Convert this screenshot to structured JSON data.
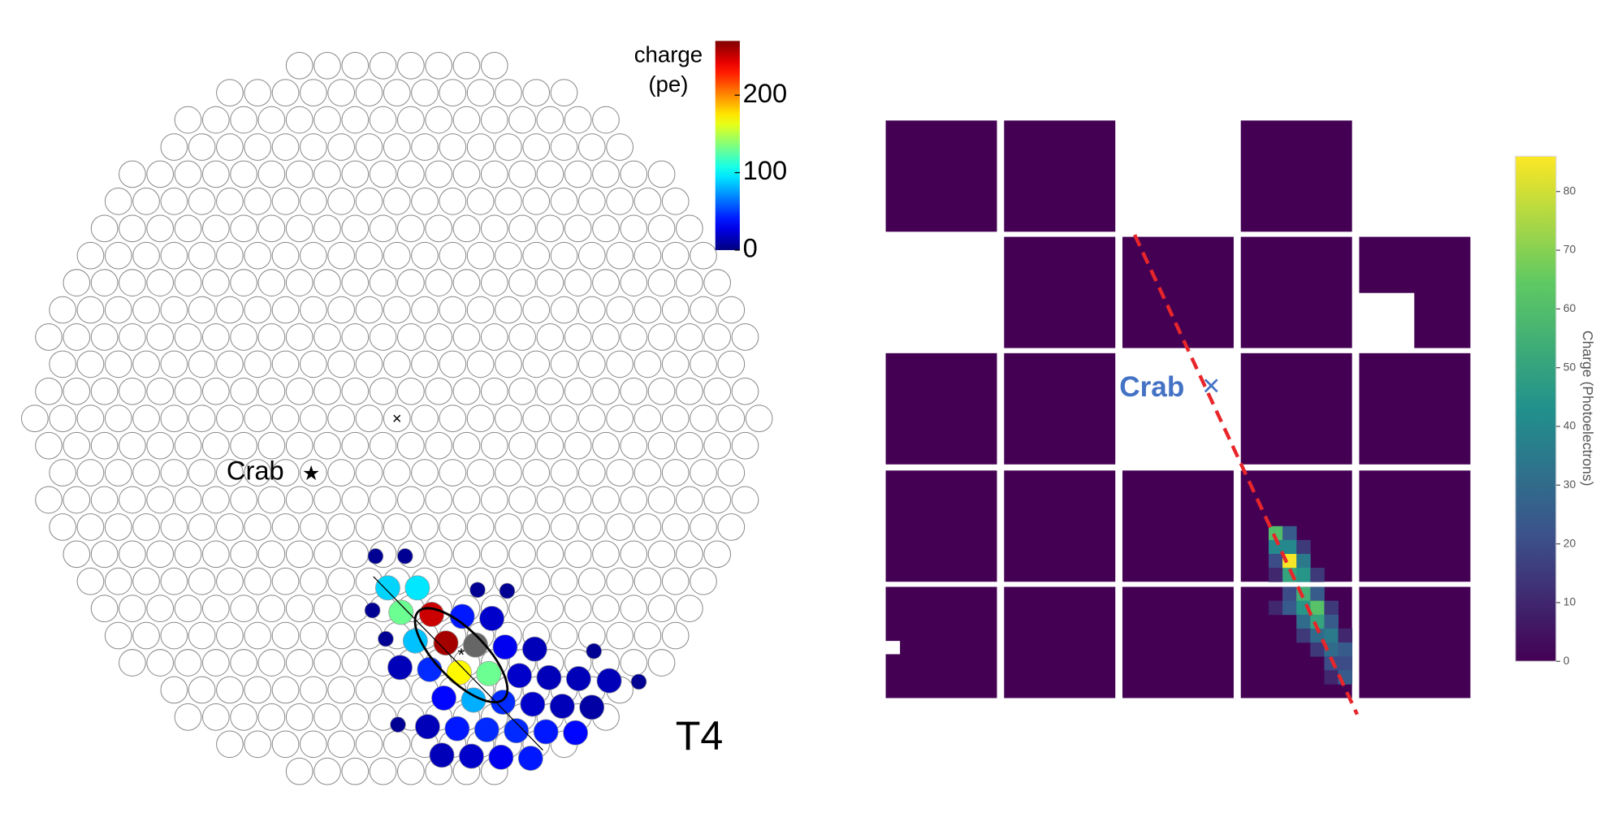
{
  "left_panel": {
    "colorbar_label": [
      "charge",
      "(pe)"
    ],
    "colormap": "jet",
    "clim": [
      0,
      270
    ],
    "colorbar_ticks": [
      0,
      100,
      200
    ],
    "over_color": "#666666",
    "source_label": "Crab",
    "telescope_label": "T4",
    "pixel_charges": [
      5,
      5,
      90,
      95,
      5,
      5,
      5,
      130,
      250,
      40,
      20,
      5,
      85,
      260,
      290,
      30,
      15,
      5,
      15,
      45,
      170,
      130,
      20,
      15,
      15,
      15,
      5,
      35,
      80,
      45,
      20,
      15,
      10,
      5,
      15,
      40,
      45,
      45,
      40,
      35,
      15,
      20,
      30,
      40
    ]
  },
  "right_panel": {
    "source_label": "Crab",
    "colorbar_label": "Charge (Photoelectrons)",
    "colormap": "viridis",
    "clim": [
      0,
      86
    ],
    "colorbar_ticks": [
      0,
      10,
      20,
      30,
      40,
      50,
      60,
      70,
      80
    ],
    "pixel_charges": [
      60,
      25,
      40,
      40,
      15,
      20,
      85,
      35,
      10,
      50,
      45,
      15,
      20,
      55,
      25,
      10,
      25,
      45,
      62,
      15,
      30,
      50,
      25,
      15,
      30,
      35,
      10,
      15,
      30,
      25,
      20,
      20,
      10,
      25
    ]
  }
}
